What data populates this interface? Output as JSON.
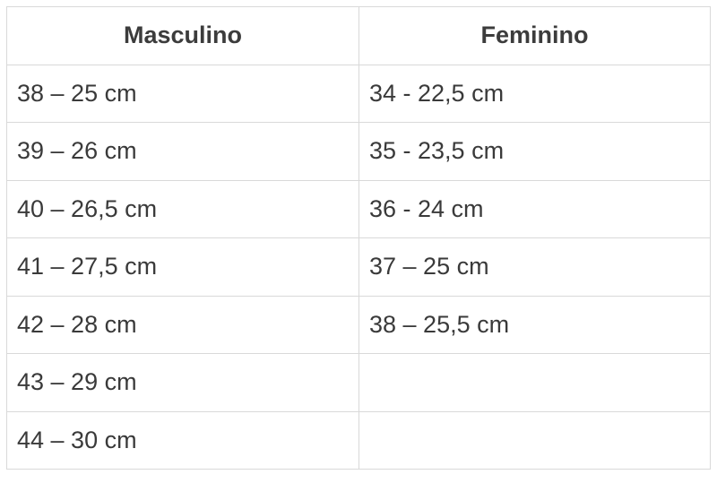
{
  "headers": [
    "Masculino",
    "Feminino"
  ],
  "rows": [
    [
      "38 – 25 cm",
      "34 - 22,5 cm"
    ],
    [
      "39 – 26 cm",
      "35 - 23,5 cm"
    ],
    [
      "40 – 26,5 cm",
      "36 - 24 cm"
    ],
    [
      "41 – 27,5 cm",
      "37 – 25 cm"
    ],
    [
      "42 – 28 cm",
      "38 – 25,5 cm"
    ],
    [
      "43 – 29 cm",
      ""
    ],
    [
      "44 – 30 cm",
      ""
    ]
  ]
}
